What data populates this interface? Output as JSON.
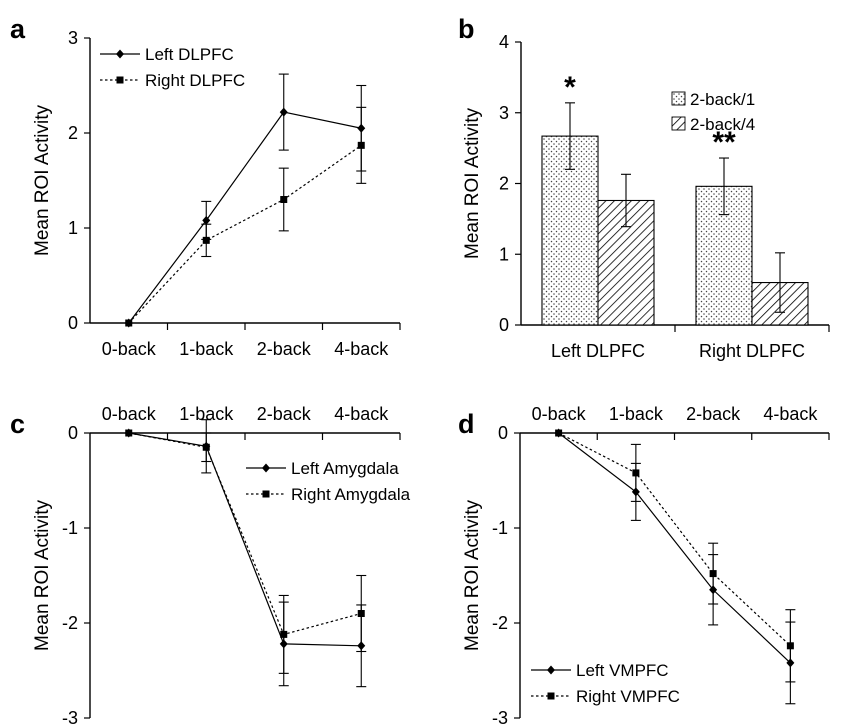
{
  "chart_data": [
    {
      "panel": "a",
      "type": "line",
      "categories": [
        "0-back",
        "1-back",
        "2-back",
        "4-back"
      ],
      "ylabel": "Mean ROI Activity",
      "ylim": [
        0,
        3
      ],
      "yticks": [
        "0",
        "1",
        "2",
        "3"
      ],
      "legend_placement": "top-left",
      "series": [
        {
          "name": "Left DLPFC",
          "style": "solid",
          "marker": "diamond",
          "values": [
            0,
            1.08,
            2.22,
            2.05
          ],
          "errors": [
            0,
            0.2,
            0.4,
            0.45
          ]
        },
        {
          "name": "Right DLPFC",
          "style": "dotted",
          "marker": "square",
          "values": [
            0,
            0.87,
            1.3,
            1.87
          ],
          "errors": [
            0,
            0.17,
            0.33,
            0.4
          ]
        }
      ]
    },
    {
      "panel": "b",
      "type": "bar",
      "categories": [
        "Left DLPFC",
        "Right DLPFC"
      ],
      "ylabel": "Mean ROI Activity",
      "ylim": [
        0,
        4
      ],
      "yticks": [
        "0",
        "1",
        "2",
        "3",
        "4"
      ],
      "legend_placement": "top-right",
      "significance": [
        "*",
        "**"
      ],
      "series": [
        {
          "name": "2-back/1",
          "pattern": "dots",
          "values": [
            2.67,
            1.96
          ],
          "errors": [
            0.47,
            0.4
          ]
        },
        {
          "name": "2-back/4",
          "pattern": "hatch",
          "values": [
            1.76,
            0.6
          ],
          "errors": [
            0.37,
            0.42
          ]
        }
      ]
    },
    {
      "panel": "c",
      "type": "line",
      "categories": [
        "0-back",
        "1-back",
        "2-back",
        "4-back"
      ],
      "ylabel": "Mean ROI Activity",
      "ylim": [
        -3,
        0
      ],
      "yticks": [
        "0",
        "-1",
        "-2",
        "-3"
      ],
      "legend_placement": "top-right",
      "series": [
        {
          "name": "Left Amygdala",
          "style": "solid",
          "marker": "diamond",
          "values": [
            0,
            -0.14,
            -2.22,
            -2.24
          ],
          "errors": [
            0,
            0.28,
            0.44,
            0.43
          ]
        },
        {
          "name": "Right Amygdala",
          "style": "dotted",
          "marker": "square",
          "values": [
            0,
            -0.15,
            -2.12,
            -1.9
          ],
          "errors": [
            0,
            0.15,
            0.41,
            0.4
          ]
        }
      ]
    },
    {
      "panel": "d",
      "type": "line",
      "categories": [
        "0-back",
        "1-back",
        "2-back",
        "4-back"
      ],
      "ylabel": "Mean ROI Activity",
      "ylim": [
        -3,
        0
      ],
      "yticks": [
        "0",
        "-1",
        "-2",
        "-3"
      ],
      "legend_placement": "bottom-left",
      "series": [
        {
          "name": "Left VMPFC",
          "style": "solid",
          "marker": "diamond",
          "values": [
            0,
            -0.62,
            -1.65,
            -2.42
          ],
          "errors": [
            0,
            0.3,
            0.37,
            0.43
          ]
        },
        {
          "name": "Right VMPFC",
          "style": "dotted",
          "marker": "square",
          "values": [
            0,
            -0.42,
            -1.48,
            -2.24
          ],
          "errors": [
            0,
            0.3,
            0.32,
            0.38
          ]
        }
      ]
    }
  ]
}
